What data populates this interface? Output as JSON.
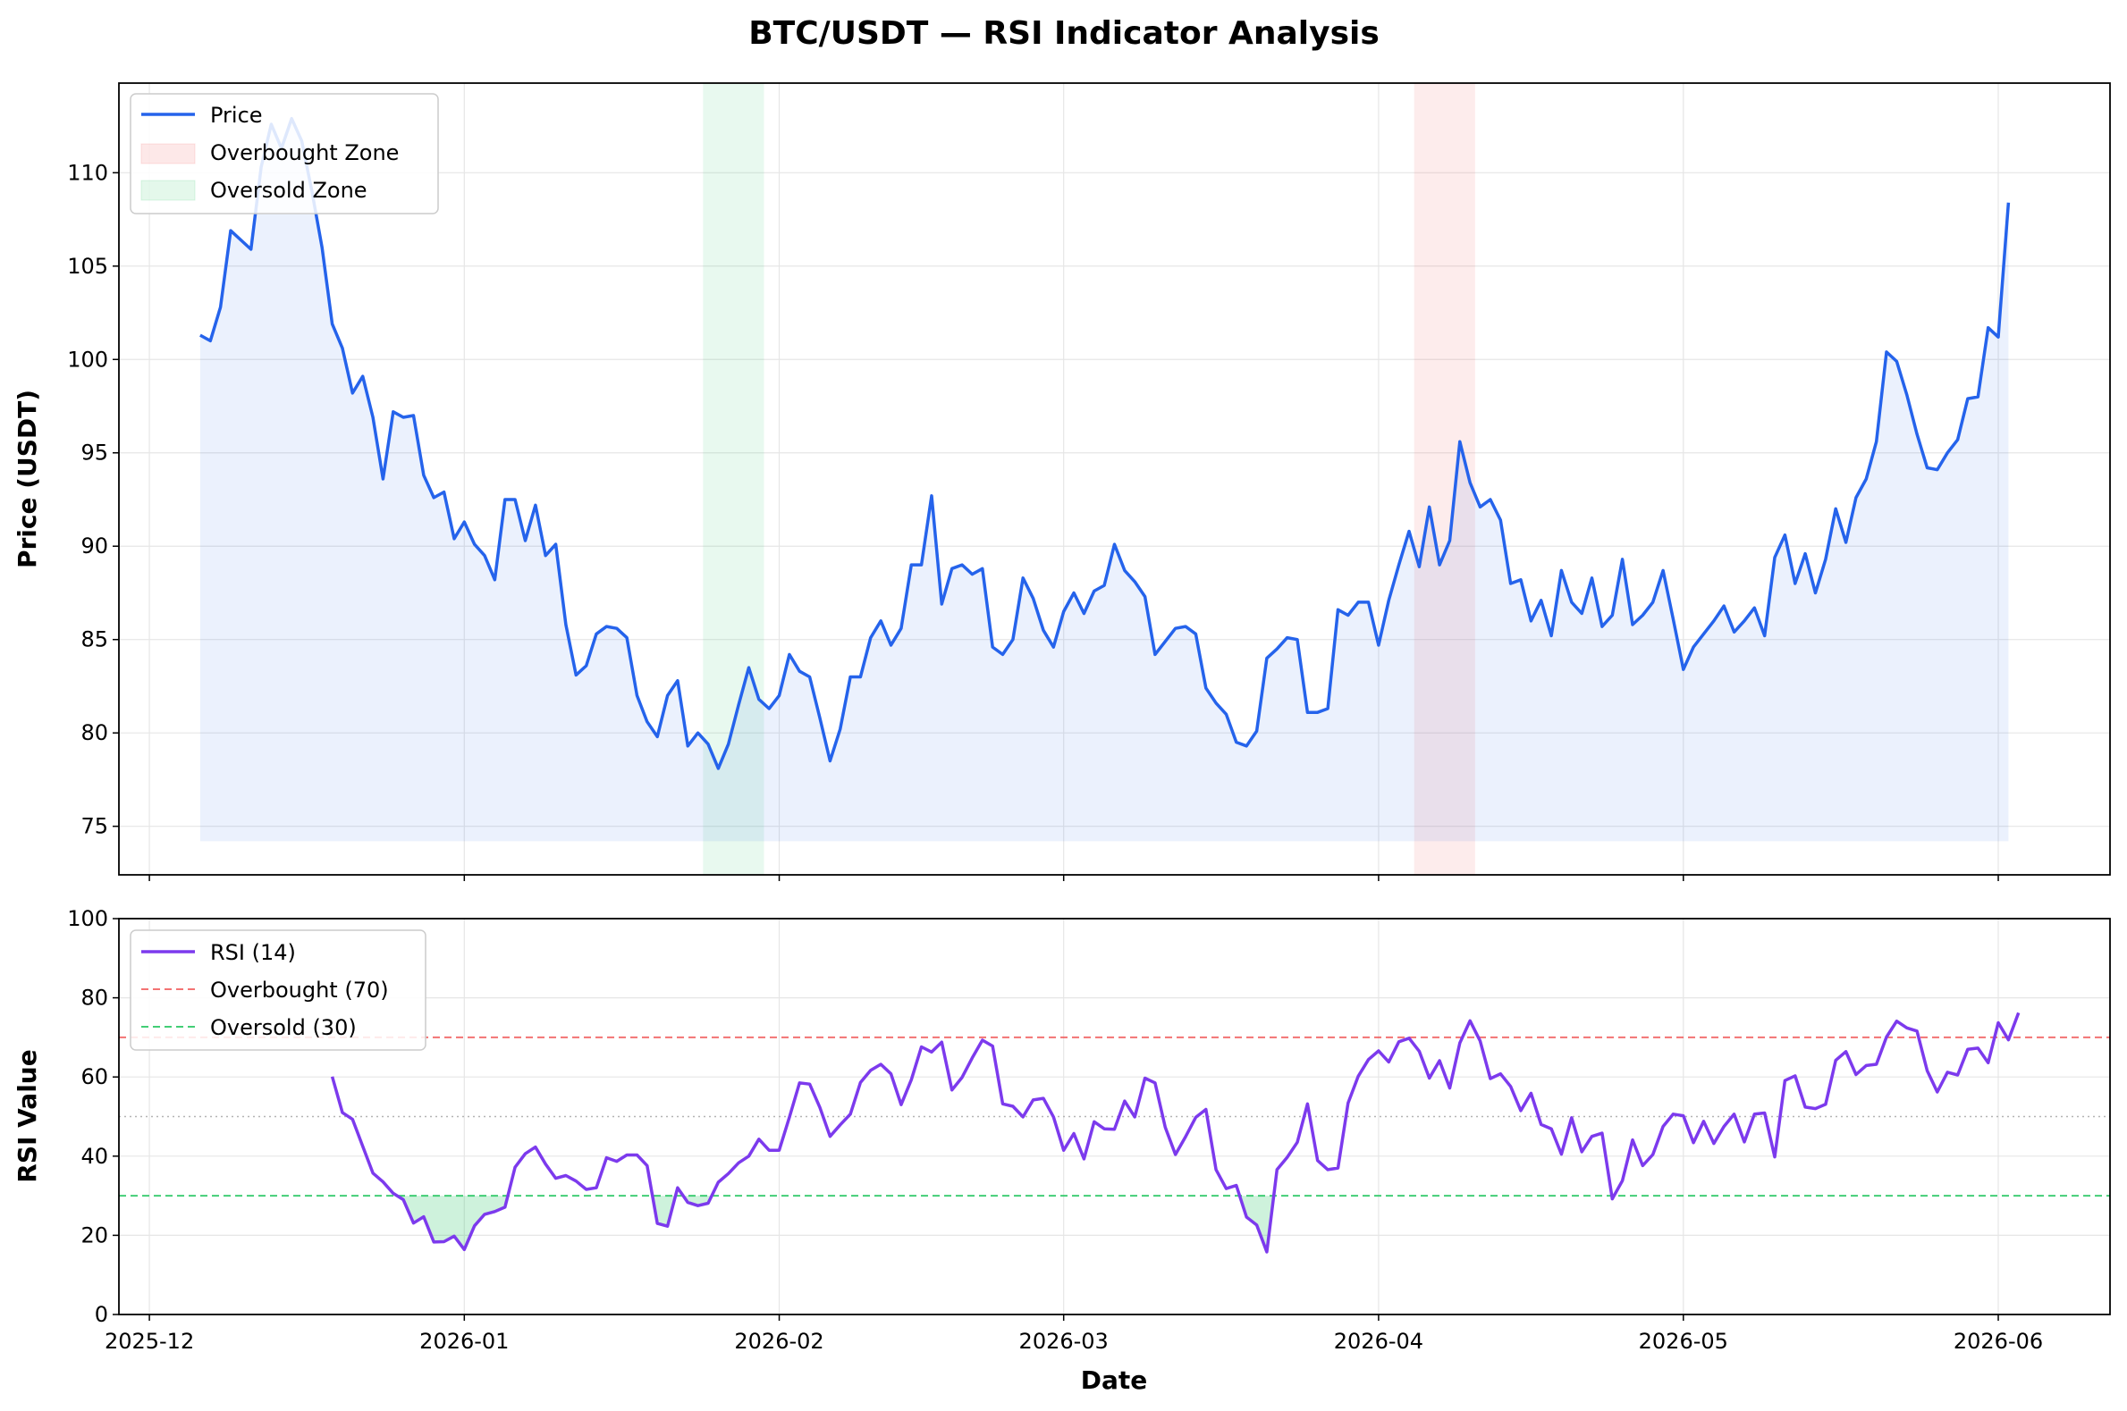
{
  "title": "BTC/USDT — RSI Indicator Analysis",
  "colors": {
    "price": "#2563eb",
    "price_fill": "#dbe4fb",
    "rsi": "#7c3aed",
    "overbought": "#ef4444",
    "oversold": "#22c55e",
    "grid": "#e6e6e6"
  },
  "chart_data": [
    {
      "type": "line",
      "name": "price-panel",
      "ylabel": "Price (USDT)",
      "xlabel": "",
      "ylim": [
        72.4,
        114.8
      ],
      "xlim": [
        "2025-11-28",
        "2026-06-12"
      ],
      "yticks": [
        75,
        80,
        85,
        90,
        95,
        100,
        105,
        110
      ],
      "grid": true,
      "legend_position": "top-left",
      "legend": [
        "Price",
        "Overbought Zone",
        "Oversold Zone"
      ],
      "fill_baseline": 74.2,
      "zones": [
        {
          "name": "Oversold Zone",
          "start": "2026-01-25",
          "end": "2026-01-30"
        },
        {
          "name": "Overbought Zone",
          "start": "2026-04-05",
          "end": "2026-04-10"
        }
      ],
      "series": [
        {
          "name": "Price",
          "start": "2025-12-06",
          "step_days": 1,
          "values": [
            101.3,
            101.0,
            102.8,
            106.9,
            106.4,
            105.9,
            110.3,
            112.6,
            111.3,
            112.9,
            111.7,
            109.0,
            106.0,
            101.9,
            100.6,
            98.2,
            99.1,
            96.9,
            93.6,
            97.2,
            96.9,
            97.0,
            93.8,
            92.6,
            92.9,
            90.4,
            91.3,
            90.1,
            89.5,
            88.2,
            92.5,
            92.5,
            90.3,
            92.2,
            89.5,
            90.1,
            85.8,
            83.1,
            83.6,
            85.3,
            85.7,
            85.6,
            85.1,
            82.0,
            80.6,
            79.8,
            82.0,
            82.8,
            79.3,
            80.0,
            79.4,
            78.1,
            79.4,
            81.5,
            83.5,
            81.8,
            81.3,
            82.0,
            84.2,
            83.3,
            83.0,
            80.8,
            78.5,
            80.2,
            83.0,
            83.0,
            85.1,
            86.0,
            84.7,
            85.6,
            89.0,
            89.0,
            92.7,
            86.9,
            88.8,
            89.0,
            88.5,
            88.8,
            84.6,
            84.2,
            85.0,
            88.3,
            87.2,
            85.5,
            84.6,
            86.5,
            87.5,
            86.4,
            87.6,
            87.9,
            90.1,
            88.7,
            88.1,
            87.3,
            84.2,
            84.9,
            85.6,
            85.7,
            85.3,
            82.4,
            81.6,
            81.0,
            79.5,
            79.3,
            80.1,
            84.0,
            84.5,
            85.1,
            85.0,
            81.1,
            81.1,
            81.3,
            86.6,
            86.3,
            87.0,
            87.0,
            84.7,
            87.1,
            89.0,
            90.8,
            88.9,
            92.1,
            89.0,
            90.3,
            95.6,
            93.4,
            92.1,
            92.5,
            91.4,
            88.0,
            88.2,
            86.0,
            87.1,
            85.2,
            88.7,
            87.0,
            86.4,
            88.3,
            85.7,
            86.3,
            89.3,
            85.8,
            86.3,
            87.0,
            88.7,
            86.1,
            83.4,
            84.6,
            85.3,
            86.0,
            86.8,
            85.4,
            86.0,
            86.7,
            85.2,
            89.4,
            90.6,
            88.0,
            89.6,
            87.5,
            89.3,
            92.0,
            90.2,
            92.6,
            93.6,
            95.6,
            100.4,
            99.9,
            98.1,
            96.0,
            94.2,
            94.1,
            95.0,
            95.7,
            97.9,
            98.0,
            101.7,
            101.2,
            108.4
          ]
        }
      ]
    },
    {
      "type": "line",
      "name": "rsi-panel",
      "ylabel": "RSI Value",
      "xlabel": "Date",
      "ylim": [
        0,
        100
      ],
      "yticks": [
        0,
        20,
        40,
        60,
        80,
        100
      ],
      "xticks": [
        "2025-12",
        "2026-01",
        "2026-02",
        "2026-03",
        "2026-04",
        "2026-05",
        "2026-06"
      ],
      "grid": true,
      "legend_position": "top-left",
      "legend": [
        "RSI (14)",
        "Overbought (70)",
        "Oversold (30)"
      ],
      "hlines": [
        {
          "name": "Overbought (70)",
          "y": 70
        },
        {
          "name": "Oversold (30)",
          "y": 30
        },
        {
          "name": "mid",
          "y": 50
        }
      ],
      "series": [
        {
          "name": "RSI (14)",
          "start": "2025-12-19",
          "step_days": 1,
          "values": [
            60.1,
            51.0,
            49.3,
            42.5,
            35.7,
            33.5,
            30.6,
            29.0,
            23.1,
            24.7,
            18.3,
            18.4,
            19.8,
            16.4,
            22.4,
            25.3,
            26.0,
            27.1,
            37.2,
            40.6,
            42.3,
            38.0,
            34.4,
            35.1,
            33.7,
            31.6,
            32.0,
            39.6,
            38.7,
            40.3,
            40.3,
            37.6,
            23.0,
            22.3,
            32.0,
            28.3,
            27.5,
            28.1,
            33.4,
            35.6,
            38.3,
            40.0,
            44.3,
            41.5,
            41.5,
            49.8,
            58.5,
            58.2,
            52.3,
            45.0,
            47.9,
            50.6,
            58.6,
            61.7,
            63.2,
            60.8,
            53.0,
            59.3,
            67.6,
            66.3,
            68.8,
            56.7,
            59.9,
            64.8,
            69.3,
            67.8,
            53.2,
            52.6,
            49.9,
            54.2,
            54.6,
            49.9,
            41.5,
            45.7,
            39.3,
            48.7,
            46.9,
            46.8,
            53.9,
            49.9,
            59.7,
            58.5,
            47.3,
            40.4,
            44.9,
            49.8,
            51.8,
            36.6,
            31.8,
            32.6,
            24.6,
            22.6,
            15.8,
            36.6,
            39.7,
            43.5,
            53.2,
            38.9,
            36.6,
            37.0,
            53.4,
            60.2,
            64.4,
            66.6,
            63.8,
            68.9,
            69.8,
            66.5,
            59.7,
            64.1,
            57.2,
            68.6,
            74.2,
            69.1,
            59.6,
            60.8,
            57.6,
            51.5,
            55.9,
            48.0,
            46.9,
            40.5,
            49.7,
            41.1,
            45.0,
            45.8,
            29.2,
            33.8,
            44.1,
            37.6,
            40.4,
            47.5,
            50.6,
            50.2,
            43.4,
            48.8,
            43.2,
            47.5,
            50.6,
            43.6,
            50.6,
            50.9,
            39.8,
            59.1,
            60.3,
            52.4,
            52.0,
            53.1,
            64.2,
            66.4,
            60.6,
            62.9,
            63.2,
            70.1,
            74.1,
            72.4,
            71.6,
            61.6,
            56.2,
            61.2,
            60.5,
            67.0,
            67.3,
            63.6,
            73.7,
            69.4,
            76.2
          ]
        }
      ]
    }
  ]
}
